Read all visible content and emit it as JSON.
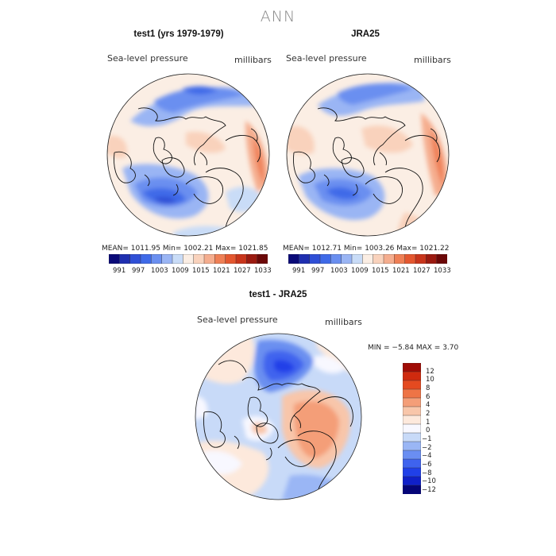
{
  "figure": {
    "season": "ANN",
    "variable": "Sea-level pressure",
    "units": "millibars"
  },
  "panels": {
    "test": {
      "title": "test1 (yrs 1979-1979)",
      "stats_text": "MEAN=  1011.95   Min=  1002.21   Max=  1021.85"
    },
    "ref": {
      "title": "JRA25",
      "stats_text": "MEAN=  1012.71   Min=  1003.26   Max=  1021.22"
    },
    "diff": {
      "title": "test1 - JRA25",
      "minmax_text": "MIN =   −5.84  MAX =    3.70"
    }
  },
  "colors": {
    "abs_scale": [
      "#0a0a78",
      "#1f2fb0",
      "#2f4fd6",
      "#3f6ae8",
      "#6a8ff0",
      "#9ab5f4",
      "#c9dcf7",
      "#fbeee4",
      "#f9d2bc",
      "#f5ad8e",
      "#ef7f55",
      "#e4572f",
      "#c8351b",
      "#9b1a10",
      "#6b0808"
    ],
    "diff_scale": [
      "#050578",
      "#1020c8",
      "#2040e8",
      "#3f63ee",
      "#6a8ef2",
      "#9ab6f5",
      "#c8daf8",
      "#f8f8ff",
      "#fde9dc",
      "#f8c6aa",
      "#f49e78",
      "#ee7446",
      "#e44a20",
      "#cf2a0e",
      "#a00c06"
    ],
    "land_outline": "#111111"
  },
  "chart_data": [
    {
      "type": "heatmap",
      "projection": "north-polar-stereographic",
      "title": "test1 (yrs 1979-1979)",
      "variable": "Sea-level pressure",
      "units": "millibars",
      "mean": 1011.95,
      "min": 1002.21,
      "max": 1021.85,
      "colorbar_ticks": [
        991,
        997,
        1003,
        1009,
        1015,
        1021,
        1027,
        1033
      ]
    },
    {
      "type": "heatmap",
      "projection": "north-polar-stereographic",
      "title": "JRA25",
      "variable": "Sea-level pressure",
      "units": "millibars",
      "mean": 1012.71,
      "min": 1003.26,
      "max": 1021.22,
      "colorbar_ticks": [
        991,
        997,
        1003,
        1009,
        1015,
        1021,
        1027,
        1033
      ]
    },
    {
      "type": "heatmap",
      "projection": "north-polar-stereographic",
      "title": "test1 - JRA25",
      "variable": "Sea-level pressure",
      "units": "millibars",
      "min": -5.84,
      "max": 3.7,
      "colorbar_ticks": [
        "12",
        "10",
        "8",
        "6",
        "4",
        "2",
        "1",
        "0",
        "−1",
        "−2",
        "−4",
        "−6",
        "−8",
        "−10",
        "−12"
      ]
    }
  ]
}
